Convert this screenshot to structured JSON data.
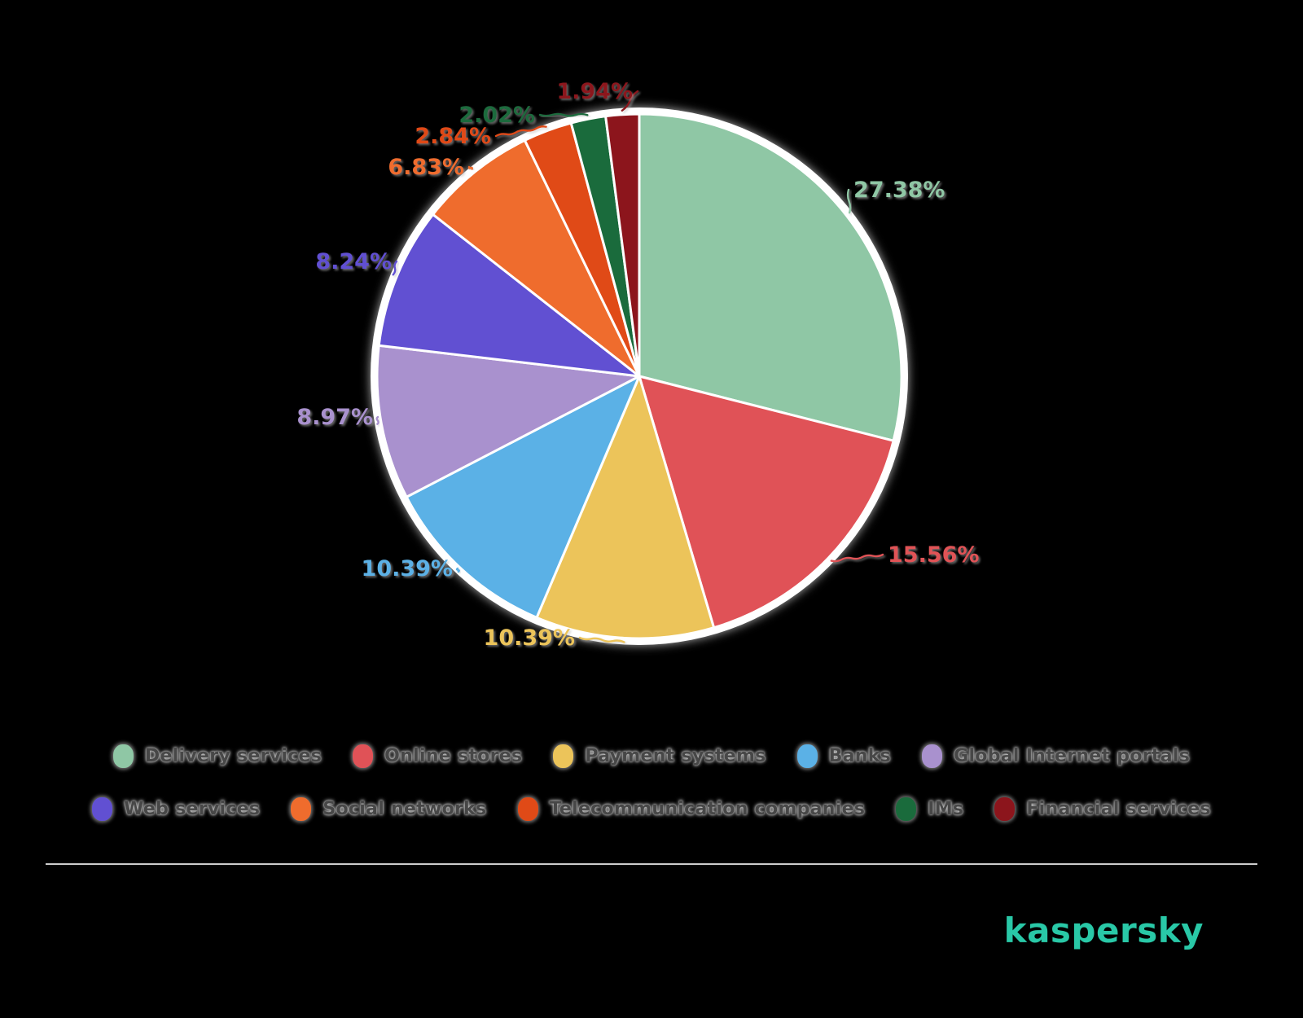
{
  "canvas": {
    "background_color": "#000000"
  },
  "chart_data": {
    "type": "pie",
    "title": "",
    "legend_position": "bottom",
    "start_angle_deg": 0,
    "direction": "clockwise",
    "values_unit": "%",
    "slices_normalized_to_total": true,
    "categories": [
      "Delivery services",
      "Online stores",
      "Payment systems",
      "Banks",
      "Global Internet portals",
      "Web services",
      "Social networks",
      "Telecommunication companies",
      "IMs",
      "Financial services"
    ],
    "values": [
      27.38,
      15.56,
      10.39,
      10.39,
      8.97,
      8.24,
      6.83,
      2.84,
      2.02,
      1.94
    ],
    "value_labels": [
      "27.38%",
      "15.56%",
      "10.39%",
      "10.39%",
      "8.97%",
      "8.24%",
      "6.83%",
      "2.84%",
      "2.02%",
      "1.94%"
    ],
    "colors": [
      "#8FC7A5",
      "#E05257",
      "#ECC45A",
      "#5BB1E6",
      "#A991CE",
      "#6150D2",
      "#EF6C2D",
      "#E04A17",
      "#1A6B3C",
      "#8C151C"
    ],
    "legend_rows": [
      [
        0,
        1,
        2,
        3,
        4
      ],
      [
        5,
        6,
        7,
        8,
        9
      ]
    ]
  },
  "branding": {
    "logo_text": "kaspersky",
    "logo_color": "#29C8A7"
  }
}
